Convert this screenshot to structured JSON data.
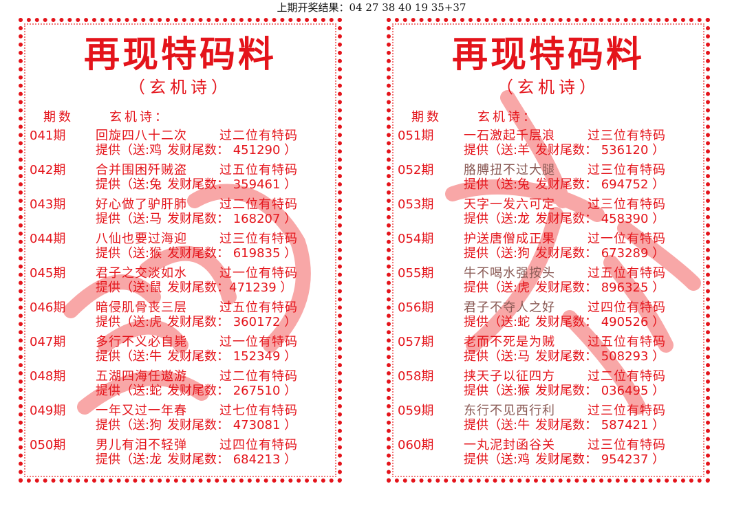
{
  "top_result": "上期开奖结果：04 27 38 40 19 35+37",
  "panels": [
    {
      "title": "再现特码料",
      "subtitle": "（玄机诗）",
      "col_period": "期数",
      "col_poem": "玄机诗：",
      "watermark": "澳门",
      "rows": [
        {
          "period": "041期",
          "poem": "回旋四八十二次",
          "hint": "过二位有特码",
          "zodiac": "提供（送:鸡",
          "tail": "发财尾数： 451290 ）"
        },
        {
          "period": "042期",
          "poem": "合并围困歼贼盗",
          "hint": "过五位有特码",
          "zodiac": "提供（送:兔",
          "tail": "发财尾数： 359461 ）"
        },
        {
          "period": "043期",
          "poem": "好心做了驴肝肺",
          "hint": "过二位有特码",
          "zodiac": "提供（送:马",
          "tail": "发财尾数： 168207 ）"
        },
        {
          "period": "044期",
          "poem": "八仙也要过海迎",
          "hint": "过三位有特码",
          "zodiac": "提供（送:猴",
          "tail": "发财尾数： 619835 ）"
        },
        {
          "period": "045期",
          "poem": "君子之交淡如水",
          "hint": "过一位有特码",
          "zodiac": "提供（送:鼠",
          "tail": "发财尾数：471239 ）"
        },
        {
          "period": "046期",
          "poem": "暗侵肌骨丧三层",
          "hint": "过五位有特码",
          "zodiac": "提供（送:虎",
          "tail": "发财尾数： 360172 ）"
        },
        {
          "period": "047期",
          "poem": "多行不义必自毙",
          "hint": "过一位有特码",
          "zodiac": "提供（送:牛",
          "tail": "发财尾数： 152349 ）"
        },
        {
          "period": "048期",
          "poem": "五湖四海任遨游",
          "hint": "过二位有特码",
          "zodiac": "提供（送:蛇",
          "tail": "发财尾数： 267510 ）"
        },
        {
          "period": "049期",
          "poem": "一年又过一年春",
          "hint": "过七位有特码",
          "zodiac": "提供（送:狗",
          "tail": "发财尾数： 473081 ）"
        },
        {
          "period": "050期",
          "poem": "男儿有泪不轻弹",
          "hint": "过四位有特码",
          "zodiac": "提供（送:龙",
          "tail": "发财尾数： 684213 ）"
        }
      ]
    },
    {
      "title": "再现特码料",
      "subtitle": "（玄机诗）",
      "col_period": "期数",
      "col_poem": "玄机诗：",
      "watermark": "六合",
      "rows": [
        {
          "period": "051期",
          "poem": "一石激起千层浪",
          "hint": "过三位有特码",
          "zodiac": "提供（送:羊",
          "tail": "发财尾数： 536120 ）",
          "grey": false
        },
        {
          "period": "052期",
          "poem": "胳膊扭不过大腿",
          "hint": "过三位有特码",
          "zodiac": "提供（送:兔",
          "tail": "发财尾数： 694752 ）",
          "grey": true
        },
        {
          "period": "053期",
          "poem": "天字一发六可定",
          "hint": "过三位有特码",
          "zodiac": "提供（送:龙",
          "tail": "发财尾数： 458390 ）",
          "grey": false
        },
        {
          "period": "054期",
          "poem": "护送唐僧成正果",
          "hint": "过一位有特码",
          "zodiac": "提供（送:狗",
          "tail": "发财尾数： 673289 ）",
          "grey": false
        },
        {
          "period": "055期",
          "poem": "牛不喝水强按头",
          "hint": "过五位有特码",
          "zodiac": "提供（送:虎",
          "tail": "发财尾数： 896325 ）",
          "grey": true
        },
        {
          "period": "056期",
          "poem": "君子不夺人之好",
          "hint": "过四位有特码",
          "zodiac": "提供（送:蛇",
          "tail": "发财尾数： 490526 ）",
          "grey": true
        },
        {
          "period": "057期",
          "poem": "老而不死是为贼",
          "hint": "过五位有特码",
          "zodiac": "提供（送:马",
          "tail": "发财尾数： 508293 ）",
          "grey": false
        },
        {
          "period": "058期",
          "poem": "挟天子以征四方",
          "hint": "过二位有特码",
          "zodiac": "提供（送:猴",
          "tail": "发财尾数： 036495 ）",
          "grey": false
        },
        {
          "period": "059期",
          "poem": "东行不见西行利",
          "hint": "过三位有特码",
          "zodiac": "提供（送:牛",
          "tail": "发财尾数： 587421 ）",
          "grey": true
        },
        {
          "period": "060期",
          "poem": "一丸泥封函谷关",
          "hint": "过三位有特码",
          "zodiac": "提供（送:鸡",
          "tail": "发财尾数： 954237 ）",
          "grey": false
        }
      ]
    }
  ],
  "colors": {
    "primary": "#e4141b",
    "grey_poem": "#8a5a55",
    "watermark": "#f03c3c"
  }
}
